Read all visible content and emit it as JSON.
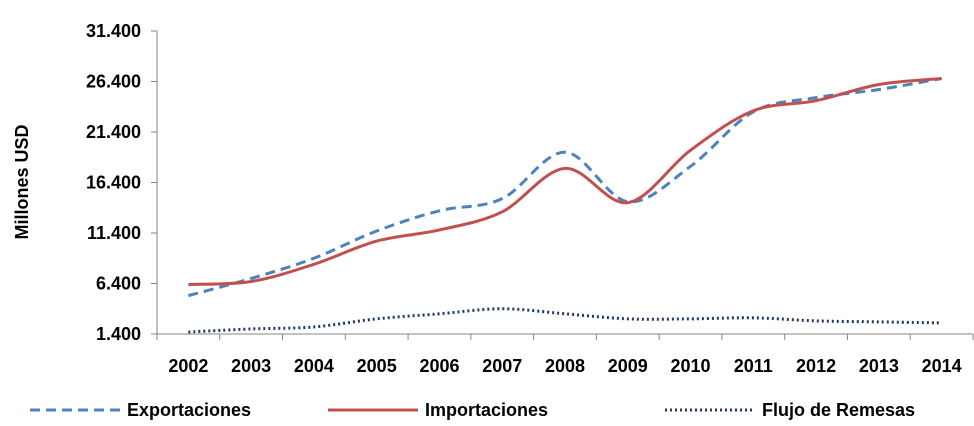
{
  "chart_data": {
    "type": "line",
    "title": "",
    "xlabel": "",
    "ylabel": "Millones USD",
    "categories": [
      "2002",
      "2003",
      "2004",
      "2005",
      "2006",
      "2007",
      "2008",
      "2009",
      "2010",
      "2011",
      "2012",
      "2013",
      "2014"
    ],
    "yticks": [
      "1.400",
      "6.400",
      "11.400",
      "16.400",
      "21.400",
      "26.400",
      "31.400"
    ],
    "ylim": [
      1400,
      31400
    ],
    "grid": false,
    "legend_position": "bottom",
    "series": [
      {
        "name": "Exportaciones",
        "style": "dashed",
        "color": "#4f81bd",
        "values": [
          5200,
          6900,
          8900,
          11600,
          13600,
          14800,
          19400,
          14500,
          18000,
          23400,
          24800,
          25600,
          26700
        ]
      },
      {
        "name": "Importaciones",
        "style": "solid",
        "color": "#c0504d",
        "values": [
          6300,
          6600,
          8300,
          10600,
          11700,
          13500,
          17800,
          14400,
          19600,
          23500,
          24500,
          26100,
          26700
        ]
      },
      {
        "name": "Flujo de Remesas",
        "style": "dotted",
        "color": "#1f3864",
        "values": [
          1600,
          1900,
          2100,
          2900,
          3400,
          3900,
          3400,
          2900,
          2900,
          3000,
          2700,
          2600,
          2500
        ]
      }
    ]
  }
}
